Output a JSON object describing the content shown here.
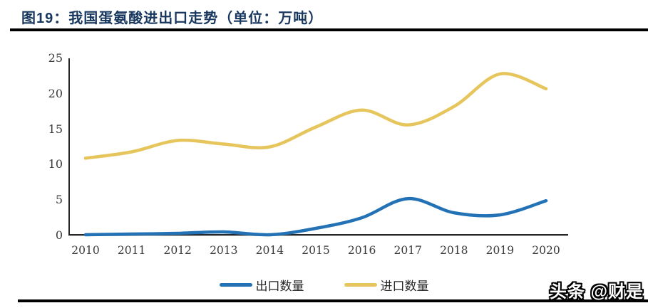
{
  "figure": {
    "title": "图19：我国蛋氨酸进出口走势（单位：万吨）",
    "title_color": "#17375E",
    "watermark": "头条 @财是"
  },
  "chart_data": {
    "type": "line",
    "x": [
      2010,
      2011,
      2012,
      2013,
      2014,
      2015,
      2016,
      2017,
      2018,
      2019,
      2020
    ],
    "series": [
      {
        "name": "出口数量",
        "color": "#2272B5",
        "values": [
          0.1,
          0.2,
          0.3,
          0.5,
          0.1,
          1.0,
          2.5,
          5.2,
          3.2,
          2.9,
          4.9
        ]
      },
      {
        "name": "进口数量",
        "color": "#E6C65C",
        "values": [
          10.9,
          11.8,
          13.4,
          12.9,
          12.5,
          15.3,
          17.7,
          15.6,
          18.2,
          22.8,
          20.7
        ]
      }
    ],
    "ylim": [
      0,
      25
    ],
    "yticks": [
      0,
      5,
      10,
      15,
      20,
      25
    ],
    "grid": false,
    "legend_position": "bottom",
    "axis_color": "#262626",
    "tick_label_color": "#3B3B3B"
  }
}
